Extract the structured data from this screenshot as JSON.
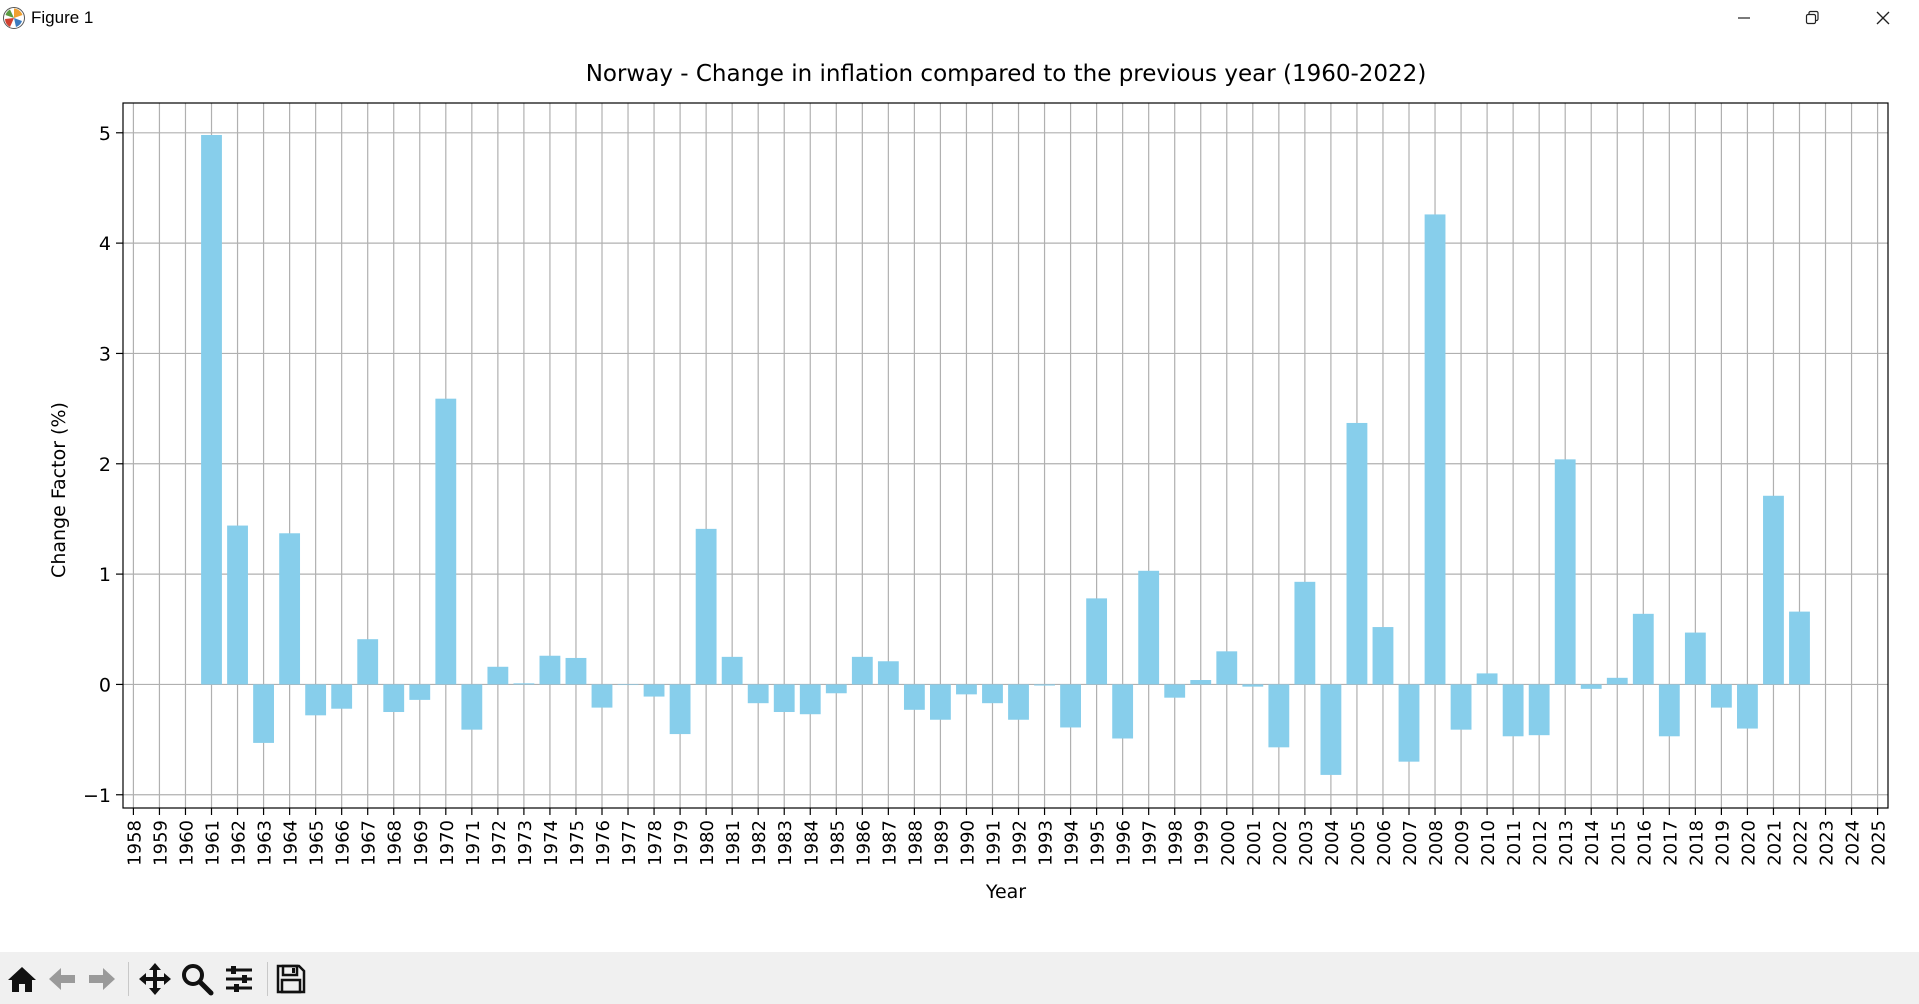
{
  "window": {
    "title": "Figure 1",
    "icon": "matplotlib-icon",
    "controls": [
      "minimize-icon",
      "restore-icon",
      "close-icon"
    ]
  },
  "toolbar": {
    "tools": [
      "home-icon",
      "back-arrow-icon",
      "forward-arrow-icon",
      "pan-icon",
      "zoom-icon",
      "configure-subplots-icon",
      "save-icon"
    ]
  },
  "chart_data": {
    "type": "bar",
    "title": "Norway - Change in inflation compared to the previous year (1960-2022)",
    "xlabel": "Year",
    "ylabel": "Change Factor (%)",
    "bar_color": "#87ceeb",
    "grid": true,
    "ylim": [
      -1.12,
      5.27
    ],
    "xlim": [
      1957.6,
      2025.4
    ],
    "yticks": [
      -1,
      0,
      1,
      2,
      3,
      4,
      5
    ],
    "xticks": [
      1958,
      1959,
      1960,
      1961,
      1962,
      1963,
      1964,
      1965,
      1966,
      1967,
      1968,
      1969,
      1970,
      1971,
      1972,
      1973,
      1974,
      1975,
      1976,
      1977,
      1978,
      1979,
      1980,
      1981,
      1982,
      1983,
      1984,
      1985,
      1986,
      1987,
      1988,
      1989,
      1990,
      1991,
      1992,
      1993,
      1994,
      1995,
      1996,
      1997,
      1998,
      1999,
      2000,
      2001,
      2002,
      2003,
      2004,
      2005,
      2006,
      2007,
      2008,
      2009,
      2010,
      2011,
      2012,
      2013,
      2014,
      2015,
      2016,
      2017,
      2018,
      2019,
      2020,
      2021,
      2022,
      2023,
      2024,
      2025
    ],
    "categories": [
      1961,
      1962,
      1963,
      1964,
      1965,
      1966,
      1967,
      1968,
      1969,
      1970,
      1971,
      1972,
      1973,
      1974,
      1975,
      1976,
      1977,
      1978,
      1979,
      1980,
      1981,
      1982,
      1983,
      1984,
      1985,
      1986,
      1987,
      1988,
      1989,
      1990,
      1991,
      1992,
      1993,
      1994,
      1995,
      1996,
      1997,
      1998,
      1999,
      2000,
      2001,
      2002,
      2003,
      2004,
      2005,
      2006,
      2007,
      2008,
      2009,
      2010,
      2011,
      2012,
      2013,
      2014,
      2015,
      2016,
      2017,
      2018,
      2019,
      2020,
      2021,
      2022
    ],
    "values": [
      4.98,
      1.44,
      -0.53,
      1.37,
      -0.28,
      -0.22,
      0.41,
      -0.25,
      -0.14,
      2.59,
      -0.41,
      0.16,
      0.01,
      0.26,
      0.24,
      -0.21,
      0.0,
      -0.11,
      -0.45,
      1.41,
      0.25,
      -0.17,
      -0.25,
      -0.27,
      -0.08,
      0.25,
      0.21,
      -0.23,
      -0.32,
      -0.09,
      -0.17,
      -0.32,
      -0.01,
      -0.39,
      0.78,
      -0.49,
      1.03,
      -0.12,
      0.04,
      0.3,
      -0.02,
      -0.57,
      0.93,
      -0.82,
      2.37,
      0.52,
      -0.7,
      4.26,
      -0.41,
      0.1,
      -0.47,
      -0.46,
      2.04,
      -0.04,
      0.06,
      0.64,
      -0.47,
      0.47,
      -0.21,
      -0.4,
      1.71,
      0.66
    ]
  }
}
